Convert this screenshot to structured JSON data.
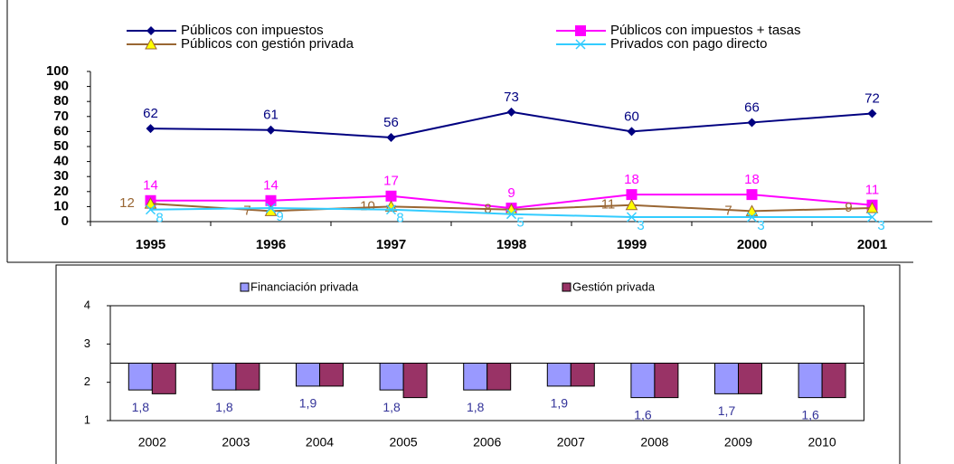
{
  "chart_data": [
    {
      "type": "line",
      "categories": [
        "1995",
        "1996",
        "1997",
        "1998",
        "1999",
        "2000",
        "2001"
      ],
      "series": [
        {
          "name": "Públicos con impuestos",
          "color": "#000080",
          "marker": "diamond",
          "values": [
            62,
            61,
            56,
            73,
            60,
            66,
            72
          ]
        },
        {
          "name": "Públicos con impuestos + tasas",
          "color": "#ff00ff",
          "marker": "square",
          "values": [
            14,
            14,
            17,
            9,
            18,
            18,
            11
          ]
        },
        {
          "name": "Públicos con gestión privada",
          "color": "#996633",
          "marker": "triangle",
          "values": [
            12,
            7,
            10,
            8,
            11,
            7,
            9
          ]
        },
        {
          "name": "Privados con pago directo",
          "color": "#33ccff",
          "marker": "x",
          "values": [
            8,
            9,
            8,
            5,
            3,
            3,
            3
          ]
        }
      ],
      "ylim": [
        0,
        100
      ],
      "yticks": [
        0,
        10,
        20,
        30,
        40,
        50,
        60,
        70,
        80,
        90,
        100
      ]
    },
    {
      "type": "bar",
      "categories": [
        "2002",
        "2003",
        "2004",
        "2005",
        "2006",
        "2007",
        "2008",
        "2009",
        "2010"
      ],
      "series": [
        {
          "name": "Financiación privada",
          "color": "#9999ff",
          "values": [
            1.8,
            1.8,
            1.9,
            1.8,
            1.8,
            1.9,
            1.6,
            1.7,
            1.6
          ],
          "value_labels": [
            "1,8",
            "1,8",
            "1,9",
            "1,8",
            "1,8",
            "1,9",
            "1,6",
            "1,7",
            "1,6"
          ]
        },
        {
          "name": "Gestión privada",
          "color": "#993366",
          "values": [
            1.7,
            1.8,
            1.9,
            1.6,
            1.8,
            1.9,
            1.6,
            1.7,
            1.6
          ]
        }
      ],
      "ylim": [
        1,
        4
      ],
      "yticks": [
        1,
        2,
        3,
        4
      ],
      "baseline": 2.5
    }
  ]
}
